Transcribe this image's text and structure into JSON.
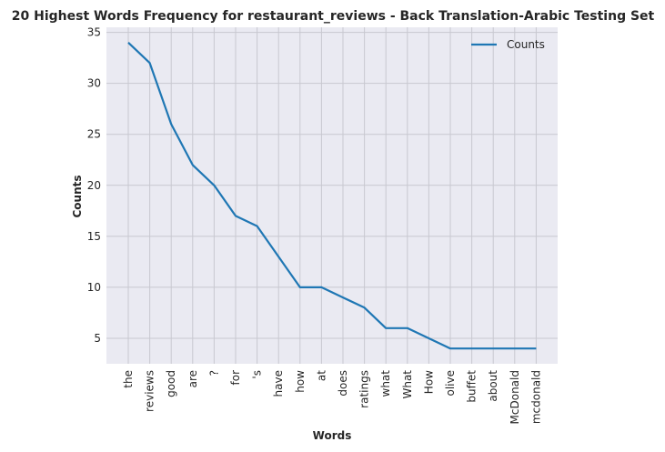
{
  "chart_data": {
    "type": "line",
    "title": "20 Highest Words Frequency for restaurant_reviews - Back Translation-Arabic Testing Set",
    "xlabel": "Words",
    "ylabel": "Counts",
    "categories": [
      "the",
      "reviews",
      "good",
      "are",
      "?",
      "for",
      "'s",
      "have",
      "how",
      "at",
      "does",
      "ratings",
      "what",
      "What",
      "How",
      "olive",
      "buffet",
      "about",
      "McDonald",
      "mcdonald"
    ],
    "series": [
      {
        "name": "Counts",
        "color": "#1f77b4",
        "values": [
          34,
          32,
          26,
          22,
          20,
          17,
          16,
          13,
          10,
          10,
          9,
          8,
          6,
          6,
          5,
          4,
          4,
          4,
          4,
          4
        ]
      }
    ],
    "ylim": [
      2.5,
      35.5
    ],
    "yticks": [
      5,
      10,
      15,
      20,
      25,
      30,
      35
    ],
    "grid": true,
    "legend": "top-right",
    "colors": {
      "plot_background": "#eaeaf2",
      "grid": "#c8c8d0",
      "line": "#1f77b4"
    }
  }
}
